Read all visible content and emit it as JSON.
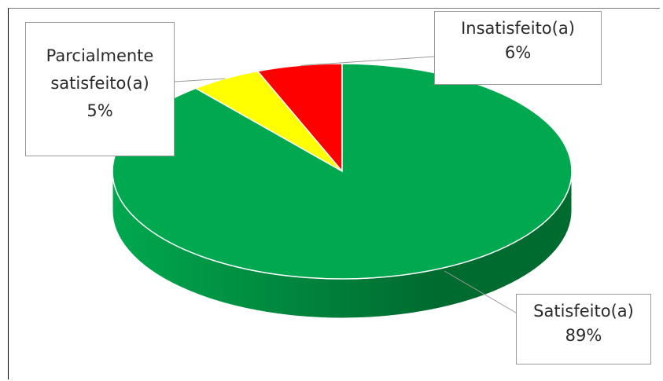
{
  "chart_data": {
    "type": "pie",
    "title": "",
    "categories": [
      "Insatisfeito(a)",
      "Parcialmente satisfeito(a)",
      "Satisfeito(a)"
    ],
    "values": [
      6,
      5,
      89
    ],
    "series": [
      {
        "values": [
          6,
          5,
          89
        ]
      }
    ],
    "labels": [
      {
        "name_lines": [
          "Insatisfeito(a)"
        ],
        "value_text": "6%"
      },
      {
        "name_lines": [
          "Parcialmente",
          "satisfeito(a)"
        ],
        "value_text": "5%"
      },
      {
        "name_lines": [
          "Satisfeito(a)"
        ],
        "value_text": "89%"
      }
    ],
    "colors": [
      "#ff0000",
      "#ffff00",
      "#00a84f"
    ],
    "side_colors": [
      "#8c0000",
      "#8c8c00",
      "#006b2f"
    ],
    "style": "3d",
    "legend": "none",
    "grid": false
  }
}
